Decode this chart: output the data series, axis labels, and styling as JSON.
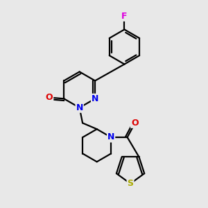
{
  "background_color": "#e8e8e8",
  "atom_colors": {
    "C": "#000000",
    "N": "#0000ee",
    "O": "#dd0000",
    "F": "#dd00dd",
    "S": "#aaaa00"
  },
  "figsize": [
    3.0,
    3.0
  ],
  "dpi": 100
}
